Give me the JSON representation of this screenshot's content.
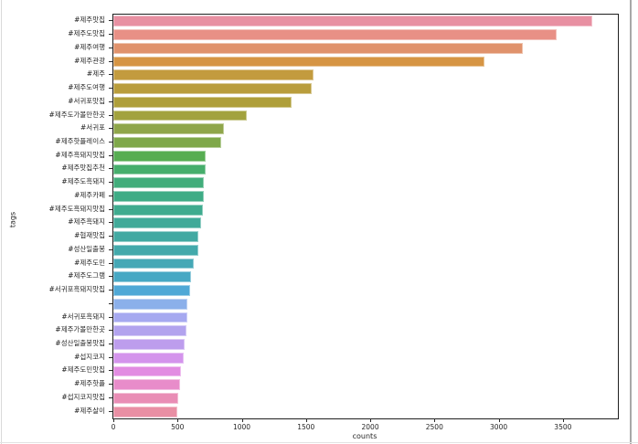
{
  "figure": {
    "background": "#ffffff",
    "window_edge_color": "#a8a8a8"
  },
  "chart_data": {
    "type": "bar",
    "orientation": "horizontal",
    "title": "",
    "xlabel": "counts",
    "ylabel": "tags",
    "xlim": [
      0,
      3928
    ],
    "xticks": [
      0,
      500,
      1000,
      1500,
      2000,
      2500,
      3000,
      3500
    ],
    "grid": false,
    "legend": "none",
    "categories": [
      "#제주맛집",
      "#제주도맛집",
      "#제주여행",
      "#제주관광",
      "#제주",
      "#제주도여행",
      "#서귀포맛집",
      "#제주도가볼만한곳",
      "#서귀포",
      "#제주핫플레이스",
      "#제주흑돼지맛집",
      "#제주맛집추천",
      "#제주도흑돼지",
      "#제주카페",
      "#제주도흑돼지맛집",
      "#제주흑돼지",
      "#협재맛집",
      "#성산일출봉",
      "#제주도민",
      "#제주도그램",
      "#서귀포흑돼지맛집",
      "",
      "#서귀포흑돼지",
      "#제주가볼만한곳",
      "#성산일출봉맛집",
      "#섭지코지",
      "#제주도민맛집",
      "#제주핫플",
      "#섭지코지맛집",
      "#제주살이"
    ],
    "values": [
      3730,
      3450,
      3190,
      2890,
      1555,
      1545,
      1385,
      1040,
      860,
      840,
      720,
      718,
      705,
      703,
      695,
      680,
      665,
      660,
      623,
      604,
      598,
      575,
      573,
      570,
      553,
      545,
      530,
      516,
      507,
      500
    ],
    "colors": [
      "#e890a2",
      "#e89086",
      "#e0926c",
      "#d69544",
      "#c39b3e",
      "#b99d3c",
      "#af9f3a",
      "#a2a23e",
      "#8fa64a",
      "#7fa84a",
      "#57ad52",
      "#46ae6c",
      "#42ad7b",
      "#3fac86",
      "#3fab8f",
      "#41aa99",
      "#42a9a2",
      "#43a9ab",
      "#45a8b6",
      "#47a8c4",
      "#4fa8d6",
      "#8bb0ea",
      "#a6a9f0",
      "#b2a3ee",
      "#bd9ded",
      "#d494ec",
      "#e28ce2",
      "#e88cca",
      "#e98db5",
      "#e98fa4"
    ]
  }
}
